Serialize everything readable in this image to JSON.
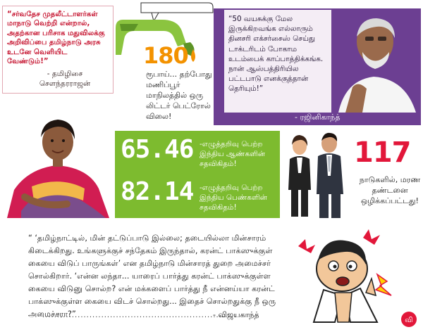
{
  "top_left": {
    "quote": "“சர்வதேச முதலீட்டாளர்கள் மாநாடு வெற்றி என்றால், அதற்கான பரிசாக மதுவிலக்கு அறிவிப்பை தமிழ்நாடு அரசு உடனே வெளியிட வேண்டும்!”",
    "author_line1": "- தமிழிசை",
    "author_line2": "சௌந்தரராஜன்"
  },
  "fuel": {
    "number": "180",
    "text": "ரூபாய்... தற்போது மணிப்பூர் மாநிலத்தில் ஒரு லிட்டர் பெட்ரோல் விலை!",
    "colors": {
      "number": "#f39200",
      "nozzle": "#8bc43f"
    },
    "icon": "fuel-nozzle-icon"
  },
  "rajini": {
    "quote": "“50 வயசுக்கு மேல இருக்கிறவங்க எல்லாரும் தினசரி எக்சர்சைஸ் செய்து டாக்டரிடம் போகாம உடம்பைக் காப்பாத்திக்கங்க. நான் ஆஸ்பத்திரியில பட்டபாடு எனக்குத்தான் தெரியும்!”",
    "author": "- ரஜினிகாந்த்",
    "panel_color": "#6c3f92"
  },
  "literacy": {
    "men_number": "65.46",
    "men_text": "-எழுத்தறிவு பெற்ற இந்திய ஆண்களின் சதவிகிதம்!",
    "women_number": "82.14",
    "women_text": "-எழுத்தறிவு பெற்ற இந்திய பெண்களின் சதவிகிதம்!",
    "panel_color": "#7dbb2f"
  },
  "death_penalty": {
    "number": "117",
    "text": "நாடுகளில், மரண தண்டனை ஒழிக்கப்பட்டது!",
    "color": "#e2173a"
  },
  "vijayakanth": {
    "quote": "“ ‘தமிழ்நாட்டில், மின் தட்டுப்பாடு இல்லை; தடையில்லா மின்சாரம் கிடைக்கிறது. உங்களுக்குச் சந்தேகம் இருந்தால், கரன்ட் பாக்ஸுக்குள் கையை விடுப் பாருங்கள்’ என தமிழ்நாடு மின்சாரத் துறை அமைச்சர் சொல்கிறார். ‘என்ன லந்தா... யாரைப் பார்த்து கரன்ட் பாக்ஸுக்குள்ள கையை விடுனு சொல்ற? என் மக்களைப் பார்த்து நீ என்னய்யா கரன்ட் பாக்ஸுக்குள்ள கையை விடச் சொல்றது... இதைச் சொல்றதுக்கு நீ ஒரு அமைச்சரா?”",
    "author": "- விஜயகாந்த்"
  },
  "logo_text": "வி"
}
